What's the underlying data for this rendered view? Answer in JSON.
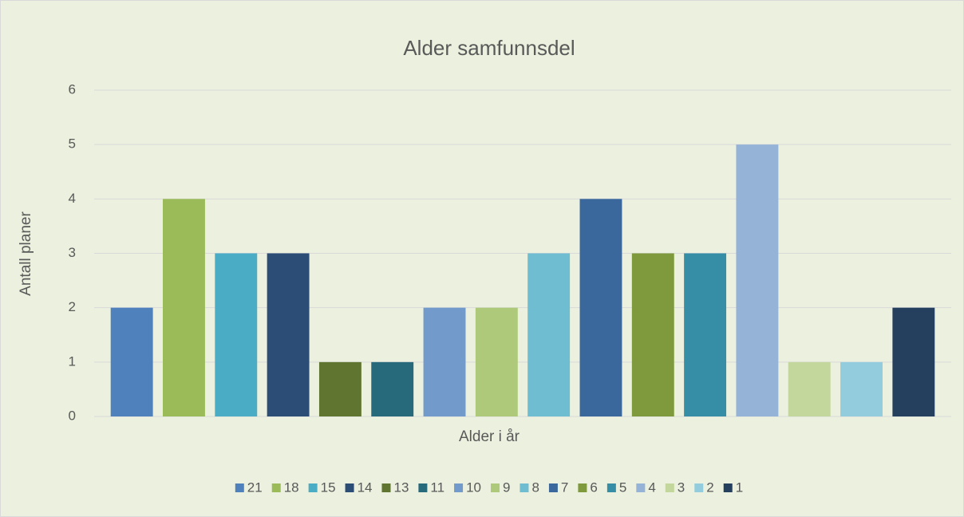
{
  "chart_data": {
    "type": "bar",
    "title": "Alder samfunnsdel",
    "x_label": "Alder i år",
    "y_label": "Antall planer",
    "categories": [
      null
    ],
    "series": [
      {
        "name": "21",
        "color": "#4f81bd",
        "values": [
          2
        ]
      },
      {
        "name": "18",
        "color": "#9bbb59",
        "values": [
          4
        ]
      },
      {
        "name": "15",
        "color": "#4bacc6",
        "values": [
          3
        ]
      },
      {
        "name": "14",
        "color": "#2c4d75",
        "values": [
          3
        ]
      },
      {
        "name": "13",
        "color": "#5f7530",
        "values": [
          1
        ]
      },
      {
        "name": "11",
        "color": "#276a7c",
        "values": [
          1
        ]
      },
      {
        "name": "10",
        "color": "#729aca",
        "values": [
          2
        ]
      },
      {
        "name": "9",
        "color": "#afc97a",
        "values": [
          2
        ]
      },
      {
        "name": "8",
        "color": "#6fbdd1",
        "values": [
          3
        ]
      },
      {
        "name": "7",
        "color": "#3a679c",
        "values": [
          4
        ]
      },
      {
        "name": "6",
        "color": "#7f9a3d",
        "values": [
          3
        ]
      },
      {
        "name": "5",
        "color": "#358ea6",
        "values": [
          3
        ]
      },
      {
        "name": "4",
        "color": "#95b3d7",
        "values": [
          5
        ]
      },
      {
        "name": "3",
        "color": "#c3d69b",
        "values": [
          1
        ]
      },
      {
        "name": "2",
        "color": "#93cddd",
        "values": [
          1
        ]
      },
      {
        "name": "1",
        "color": "#253f5f",
        "values": [
          2
        ]
      }
    ],
    "ylim": [
      0,
      6
    ],
    "yticks": [
      0,
      1,
      2,
      3,
      4,
      5,
      6
    ],
    "grid": true,
    "legend": "bottom"
  }
}
